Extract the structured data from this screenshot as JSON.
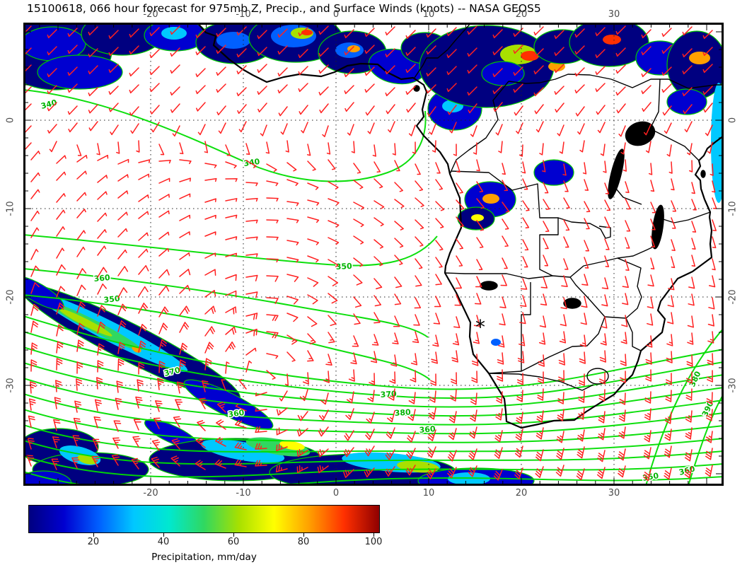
{
  "title": "15100618, 066 hour forecast for 975mb Z, Precip., and Surface Winds (knots) -- NASA GEOS5",
  "colorbar": {
    "label": "Precipitation, mm/day",
    "ticks": [
      20,
      40,
      60,
      80,
      100
    ],
    "stops": [
      "#000080",
      "#0000d0",
      "#0060ff",
      "#00c8ff",
      "#00e8d0",
      "#30d860",
      "#a8e000",
      "#ffff00",
      "#ffa000",
      "#ff3000",
      "#900000"
    ]
  },
  "chart_data": {
    "type": "heatmap",
    "title": "15100618, 066 hour forecast for 975mb Z, Precip., and Surface Winds (knots) -- NASA GEOS5",
    "model": "NASA GEOS5",
    "init_time": "15100618",
    "forecast_hour": "066",
    "level": "975mb",
    "variables": [
      "geopotential height Z",
      "precipitation",
      "surface winds (knots)"
    ],
    "axes": {
      "lon_ticks": [
        -20,
        -10,
        0,
        10,
        20,
        30
      ],
      "lat_ticks": [
        0,
        -10,
        -20,
        -30
      ],
      "lon_range": [
        -33.7,
        41.8
      ],
      "lat_range": [
        -41.4,
        11.0
      ],
      "grid": "dotted"
    },
    "height_contours": {
      "color": "#00dd00",
      "labels_visible": [
        "340",
        "340",
        "360",
        "350",
        "350",
        "370",
        "360",
        "370",
        "380",
        "380",
        "390",
        "360",
        "360",
        "350"
      ]
    },
    "wind_barbs": {
      "color": "#ff2020",
      "units": "knots",
      "typical_speed_north_kt": 10,
      "typical_speed_south_kt": 25
    },
    "precipitation": {
      "units": "mm/day",
      "scale_min": 0,
      "scale_max": 100,
      "regions": [
        "ITCZ band across ~5-10N from Atlantic through Congo basin with embedded >80 mm/day cores",
        "frontal band SW-NE in subtropical South Atlantic with 40-80 mm/day core",
        "storm-track band along southern edge (~38-41S) with bright cores",
        "isolated cores near Angola coast and East Africa"
      ]
    },
    "marker": {
      "symbol": "*",
      "approx_lon": 15.5,
      "approx_lat": -23.5
    }
  }
}
